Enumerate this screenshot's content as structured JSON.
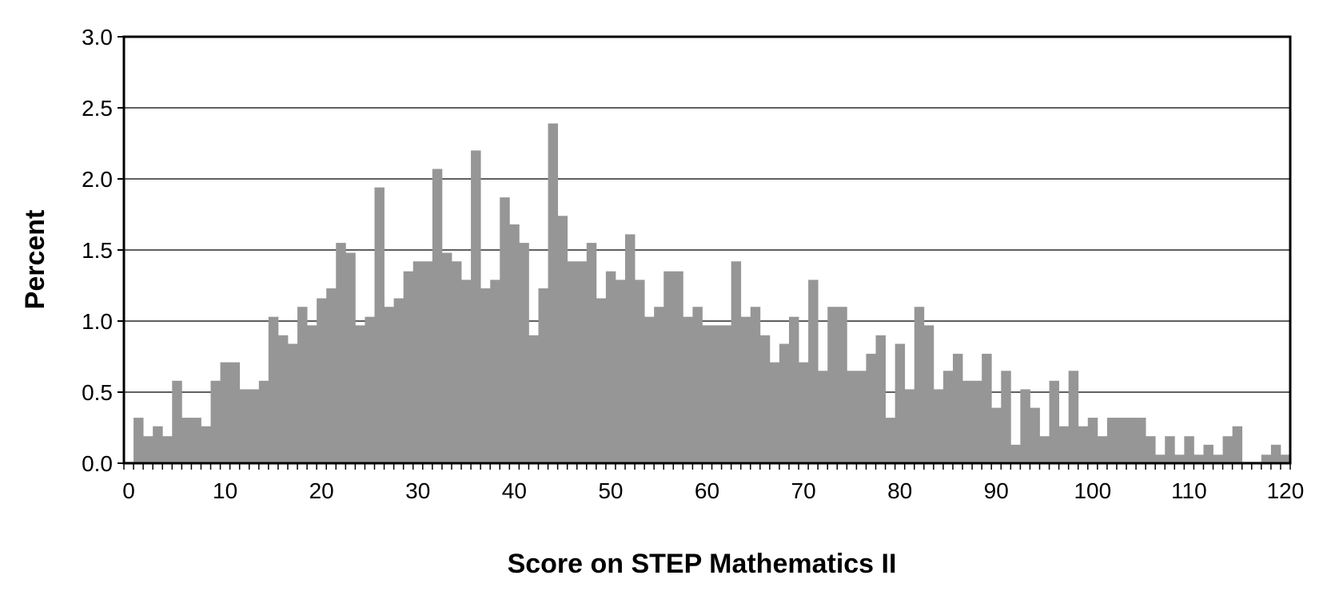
{
  "chart_data": {
    "type": "bar",
    "title": "",
    "xlabel": "Score on STEP Mathematics II",
    "ylabel": "Percent",
    "xlim": [
      0,
      121
    ],
    "ylim": [
      0,
      3.0
    ],
    "grid": true,
    "bar_color": "#969696",
    "x_ticks": [
      0,
      10,
      20,
      30,
      40,
      50,
      60,
      70,
      80,
      90,
      100,
      110,
      120
    ],
    "x_tick_labels": [
      "0",
      "10",
      "20",
      "30",
      "40",
      "50",
      "60",
      "70",
      "80",
      "90",
      "100",
      "110",
      "120"
    ],
    "y_ticks": [
      0,
      0.5,
      1.0,
      1.5,
      2.0,
      2.5,
      3.0
    ],
    "y_tick_labels": [
      "0.0",
      "0.5",
      "1.0",
      "1.5",
      "2.0",
      "2.5",
      "3.0"
    ],
    "x": [
      0,
      1,
      2,
      3,
      4,
      5,
      6,
      7,
      8,
      9,
      10,
      11,
      12,
      13,
      14,
      15,
      16,
      17,
      18,
      19,
      20,
      21,
      22,
      23,
      24,
      25,
      26,
      27,
      28,
      29,
      30,
      31,
      32,
      33,
      34,
      35,
      36,
      37,
      38,
      39,
      40,
      41,
      42,
      43,
      44,
      45,
      46,
      47,
      48,
      49,
      50,
      51,
      52,
      53,
      54,
      55,
      56,
      57,
      58,
      59,
      60,
      61,
      62,
      63,
      64,
      65,
      66,
      67,
      68,
      69,
      70,
      71,
      72,
      73,
      74,
      75,
      76,
      77,
      78,
      79,
      80,
      81,
      82,
      83,
      84,
      85,
      86,
      87,
      88,
      89,
      90,
      91,
      92,
      93,
      94,
      95,
      96,
      97,
      98,
      99,
      100,
      101,
      102,
      103,
      104,
      105,
      106,
      107,
      108,
      109,
      110,
      111,
      112,
      113,
      114,
      115,
      116,
      117,
      118,
      119,
      120
    ],
    "values": [
      0.01,
      0.32,
      0.19,
      0.26,
      0.19,
      0.58,
      0.32,
      0.32,
      0.26,
      0.58,
      0.71,
      0.71,
      0.52,
      0.52,
      0.58,
      1.03,
      0.9,
      0.84,
      1.1,
      0.97,
      1.16,
      1.23,
      1.55,
      1.48,
      0.97,
      1.03,
      1.94,
      1.1,
      1.16,
      1.35,
      1.42,
      1.42,
      2.07,
      1.48,
      1.42,
      1.29,
      2.2,
      1.23,
      1.29,
      1.87,
      1.68,
      1.55,
      0.9,
      1.23,
      2.39,
      1.74,
      1.42,
      1.42,
      1.55,
      1.16,
      1.35,
      1.29,
      1.61,
      1.29,
      1.03,
      1.1,
      1.35,
      1.35,
      1.03,
      1.1,
      0.97,
      0.97,
      0.97,
      1.42,
      1.03,
      1.1,
      0.9,
      0.71,
      0.84,
      1.03,
      0.71,
      1.29,
      0.65,
      1.1,
      1.1,
      0.65,
      0.65,
      0.77,
      0.9,
      0.32,
      0.84,
      0.52,
      1.1,
      0.97,
      0.52,
      0.65,
      0.77,
      0.58,
      0.58,
      0.77,
      0.39,
      0.65,
      0.13,
      0.52,
      0.39,
      0.19,
      0.58,
      0.26,
      0.65,
      0.26,
      0.32,
      0.19,
      0.32,
      0.32,
      0.32,
      0.32,
      0.19,
      0.06,
      0.19,
      0.06,
      0.19,
      0.06,
      0.13,
      0.06,
      0.19,
      0.26,
      0.01,
      0.01,
      0.06,
      0.13,
      0.06
    ]
  }
}
